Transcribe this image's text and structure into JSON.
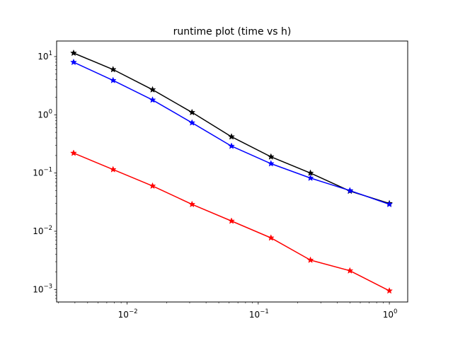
{
  "chart_data": {
    "type": "line",
    "title": "runtime plot (time vs h)",
    "xlabel": "",
    "ylabel": "",
    "xscale": "log",
    "yscale": "log",
    "xlim": [
      0.0029,
      1.38
    ],
    "ylim": [
      0.00061,
      18.5
    ],
    "grid": false,
    "legend": "none",
    "marker": "star",
    "x": [
      0.00390625,
      0.0078125,
      0.015625,
      0.03125,
      0.0625,
      0.125,
      0.25,
      0.5,
      1.0
    ],
    "x_ticks": [
      {
        "value": 0.01,
        "base": "10",
        "exp": "−2"
      },
      {
        "value": 0.1,
        "base": "10",
        "exp": "−1"
      },
      {
        "value": 1,
        "base": "10",
        "exp": "0"
      }
    ],
    "y_ticks": [
      {
        "value": 0.001,
        "base": "10",
        "exp": "−3"
      },
      {
        "value": 0.01,
        "base": "10",
        "exp": "−2"
      },
      {
        "value": 0.1,
        "base": "10",
        "exp": "−1"
      },
      {
        "value": 1,
        "base": "10",
        "exp": "0"
      },
      {
        "value": 10,
        "base": "10",
        "exp": "1"
      }
    ],
    "series": [
      {
        "color": "#000000",
        "values": [
          11.5,
          6.0,
          2.7,
          1.1,
          0.42,
          0.19,
          0.1,
          0.049,
          0.03
        ]
      },
      {
        "color": "#0000ff",
        "values": [
          8.0,
          3.9,
          1.8,
          0.73,
          0.29,
          0.145,
          0.082,
          0.05,
          0.029
        ]
      },
      {
        "color": "#ff0000",
        "values": [
          0.22,
          0.115,
          0.06,
          0.029,
          0.015,
          0.0077,
          0.0032,
          0.0021,
          0.00095
        ]
      }
    ]
  }
}
